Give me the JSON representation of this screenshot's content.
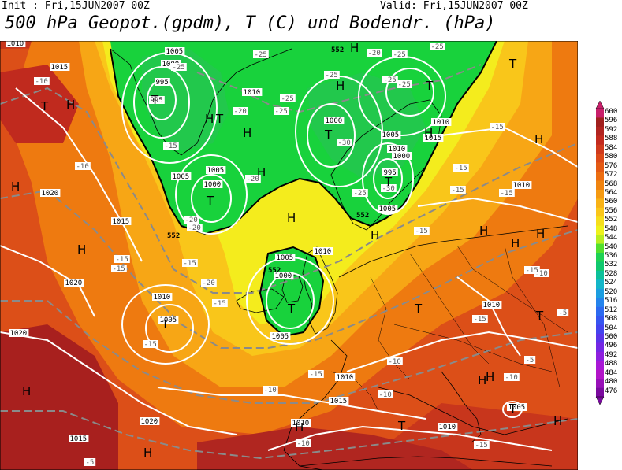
{
  "header": {
    "init": "Init : Fri,15JUN2007 00Z",
    "valid": "Valid: Fri,15JUN2007 00Z",
    "title": "500 hPa Geopot.(gpdm), T (C) und Bodendr. (hPa)"
  },
  "colors": {
    "dark_red": "#a8201e",
    "red": "#c8361c",
    "red_orange": "#dc4f18",
    "orange": "#ee7a10",
    "light_orange": "#f7a615",
    "yellow_orange": "#f9c61a",
    "yellow": "#f4ec1d",
    "green": "#18d23c",
    "light_green": "#22c84c",
    "isobar": "#ffffff",
    "isotherm": "#808080",
    "coast": "#000000"
  },
  "legend": {
    "levels": [
      "600",
      "596",
      "592",
      "588",
      "584",
      "580",
      "576",
      "572",
      "568",
      "564",
      "560",
      "556",
      "552",
      "548",
      "544",
      "540",
      "536",
      "532",
      "528",
      "524",
      "520",
      "516",
      "512",
      "508",
      "504",
      "500",
      "496",
      "492",
      "488",
      "484",
      "480",
      "476"
    ],
    "colors": [
      "#c81f6a",
      "#a0201e",
      "#b02420",
      "#c22a1e",
      "#cf3a1c",
      "#dc4a18",
      "#e45a14",
      "#ec6e12",
      "#f08410",
      "#f59a12",
      "#f8b216",
      "#fac61a",
      "#f6de1c",
      "#eef21c",
      "#b8ee20",
      "#52e02e",
      "#1ed254",
      "#10c86e",
      "#0cc09a",
      "#14b6c8",
      "#1c9ee0",
      "#2484ec",
      "#2c6af0",
      "#3656f0",
      "#4444ee",
      "#5a34e8",
      "#7428e4",
      "#8e20de",
      "#a818d6",
      "#b214c8",
      "#9810b8",
      "#7a0a9e"
    ]
  },
  "pressure_labels": [
    "1010",
    "1015",
    "1005",
    "1000",
    "995",
    "995",
    "1010",
    "1000",
    "1005",
    "1010",
    "1000",
    "995",
    "1005",
    "1000",
    "1005",
    "1020",
    "1015",
    "1020",
    "1010",
    "1005",
    "1005",
    "1000",
    "1010",
    "1010",
    "1015",
    "1020",
    "1020",
    "1010",
    "1010",
    "1010",
    "1015",
    "1010",
    "1005",
    "1005",
    "1015",
    "1010",
    "1005"
  ],
  "temp_labels": [
    "-10",
    "-25",
    "-25",
    "-25",
    "-25",
    "-20",
    "-25",
    "-25",
    "-20",
    "-25",
    "-15",
    "-20",
    "-20",
    "-20",
    "-15",
    "-15",
    "-15",
    "-20",
    "-25",
    "-30",
    "-25",
    "-30",
    "-25",
    "-10",
    "-15",
    "-15",
    "-15",
    "-15",
    "-15",
    "-10",
    "-5",
    "-15",
    "-15",
    "-10",
    "-15",
    "-10",
    "-10",
    "-5",
    "-10",
    "-5",
    "-15",
    "-10",
    "-15",
    "-15"
  ],
  "height_labels": [
    "552",
    "552",
    "552",
    "552"
  ],
  "highs": [
    "H",
    "H",
    "H",
    "H",
    "H",
    "H",
    "H",
    "H",
    "H",
    "H",
    "H",
    "H",
    "H",
    "H",
    "H",
    "H",
    "H",
    "H",
    "H",
    "H",
    "H"
  ],
  "lows": [
    "T",
    "T",
    "T",
    "T",
    "T",
    "T",
    "T",
    "T",
    "T",
    "T",
    "T",
    "T",
    "T",
    "T"
  ]
}
